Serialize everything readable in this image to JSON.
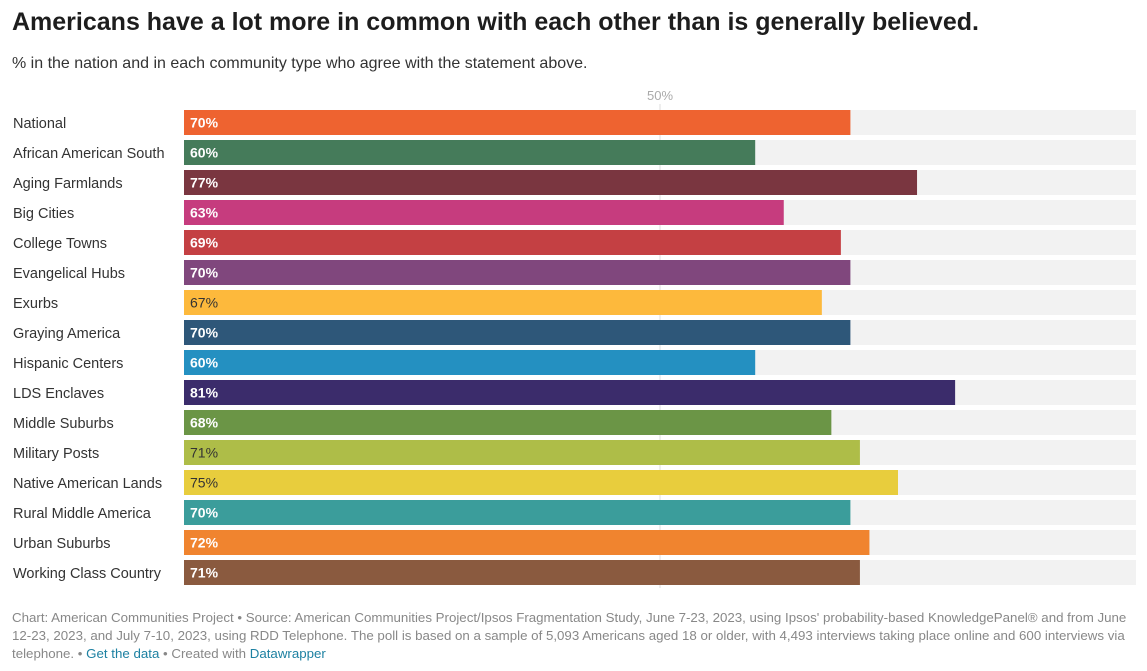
{
  "header": {
    "title": "Americans have a lot more in common with each other than is generally believed.",
    "subtitle": "% in the nation and in each community type who agree with the statement above."
  },
  "chart_data": {
    "type": "bar",
    "orientation": "horizontal",
    "xlim": [
      0,
      100
    ],
    "gridline_label": "50%",
    "gridline_value": 50,
    "categories": [
      "National",
      "African American South",
      "Aging Farmlands",
      "Big Cities",
      "College Towns",
      "Evangelical Hubs",
      "Exurbs",
      "Graying America",
      "Hispanic Centers",
      "LDS Enclaves",
      "Middle Suburbs",
      "Military Posts",
      "Native American Lands",
      "Rural Middle America",
      "Urban Suburbs",
      "Working Class Country"
    ],
    "values": [
      70,
      60,
      77,
      63,
      69,
      70,
      67,
      70,
      60,
      81,
      68,
      71,
      75,
      70,
      72,
      71
    ],
    "labels": [
      "70%",
      "60%",
      "77%",
      "63%",
      "69%",
      "70%",
      "67%",
      "70%",
      "60%",
      "81%",
      "68%",
      "71%",
      "75%",
      "70%",
      "72%",
      "71%"
    ],
    "colors": [
      "#ee6330",
      "#457b5a",
      "#7a3640",
      "#c63c7e",
      "#c44043",
      "#80477d",
      "#fdb93c",
      "#2e5779",
      "#2490c1",
      "#3b2c6b",
      "#6b9546",
      "#aebd48",
      "#e8cd3d",
      "#3b9d9b",
      "#f0842f",
      "#8a5a3f"
    ],
    "label_colors": [
      "#fff",
      "#fff",
      "#fff",
      "#fff",
      "#fff",
      "#fff",
      "#333",
      "#fff",
      "#fff",
      "#fff",
      "#fff",
      "#333",
      "#333",
      "#fff",
      "#fff",
      "#fff"
    ],
    "background_bar_color": "#f2f2f2"
  },
  "footer": {
    "text": "Chart: American Communities Project • Source: American Communities Project/Ipsos Fragmentation Study, June 7-23, 2023, using Ipsos' probability-based KnowledgePanel® and from June 12-23, 2023, and July 7-10, 2023, using RDD Telephone. The poll is based on a sample of 5,093 Americans aged 18 or older, with 4,493 interviews taking place online and 600 interviews via telephone.",
    "sep1": " • ",
    "get_data": "Get the data",
    "sep2": " • Created with ",
    "datawrapper": "Datawrapper"
  }
}
